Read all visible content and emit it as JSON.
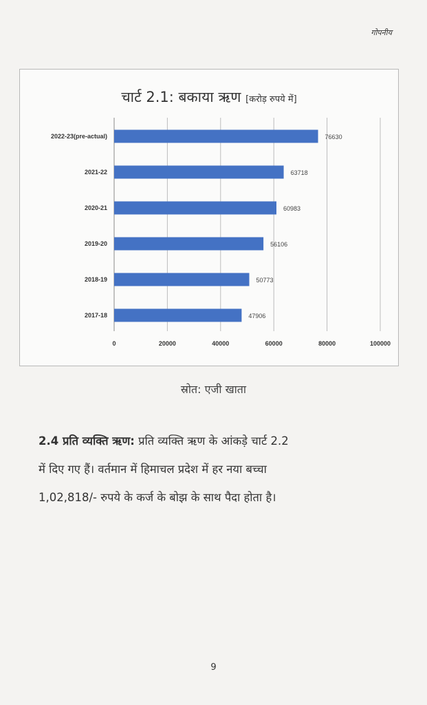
{
  "header": {
    "mark": "गोपनीय"
  },
  "chart": {
    "title_main": "चार्ट 2.1: बकाया ऋण",
    "title_unit": "[करोड़ रुपये में]"
  },
  "chart_data": {
    "type": "bar",
    "orientation": "horizontal",
    "title": "चार्ट 2.1: बकाया ऋण [करोड़ रुपये में]",
    "categories": [
      "2022-23(pre-actual)",
      "2021-22",
      "2020-21",
      "2019-20",
      "2018-19",
      "2017-18"
    ],
    "values": [
      76630,
      63718,
      60983,
      56106,
      50773,
      47906
    ],
    "data_labels": [
      "76630",
      "63718",
      "60983",
      "56106",
      "50773",
      "47906"
    ],
    "xlim": [
      0,
      100000
    ],
    "xticks": [
      0,
      20000,
      40000,
      60000,
      80000,
      100000
    ],
    "xtick_labels": [
      "0",
      "20000",
      "40000",
      "60000",
      "80000",
      "100000"
    ],
    "grid": true,
    "bar_color": "#4472c4"
  },
  "source": {
    "text": "स्रोत: एजी खाता"
  },
  "paragraph": {
    "heading": "2.4 प्रति व्यक्ति ऋण:",
    "line1": "प्रति व्यक्ति ऋण के आंकड़े चार्ट 2.2",
    "line2": "में दिए गए हैं। वर्तमान में हिमाचल प्रदेश में हर नया बच्चा",
    "line3": "1,02,818/- रुपये के कर्ज के बोझ के साथ पैदा होता है।"
  },
  "page": {
    "number": "9"
  }
}
